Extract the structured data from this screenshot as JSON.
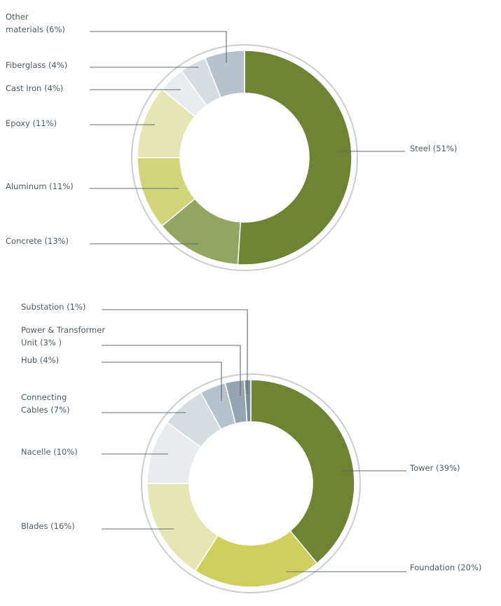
{
  "chart_data": [
    {
      "type": "pie",
      "donut": true,
      "categories": [
        "Steel",
        "Concrete",
        "Aluminum",
        "Epoxy",
        "Cast Iron",
        "Fiberglass",
        "Other materials"
      ],
      "values": [
        51,
        13,
        11,
        11,
        4,
        4,
        6
      ],
      "labels": [
        "Steel (51%)",
        "Concrete (13%)",
        "Aluminum (11%)",
        "Epoxy (11%)",
        "Cast Iron (4%)",
        "Fiberglass (4%)",
        "Other\nmaterials (6%)"
      ],
      "colors": [
        "#6f8335",
        "#93a463",
        "#d2d47a",
        "#e6e6b4",
        "#e8ecef",
        "#d6dde2",
        "#b7c3cc"
      ],
      "title": "",
      "xlabel": "",
      "ylabel": ""
    },
    {
      "type": "pie",
      "donut": true,
      "categories": [
        "Tower",
        "Foundation",
        "Blades",
        "Nacelle",
        "Connecting Cables",
        "Hub",
        "Power & Transformer Unit",
        "Substation"
      ],
      "values": [
        39,
        20,
        16,
        10,
        7,
        4,
        3,
        1
      ],
      "labels": [
        "Tower (39%)",
        "Foundation (20%)",
        "Blades (16%)",
        "Nacelle (10%)",
        "Connecting\nCables (7%)",
        "Hub (4%)",
        "Power & Transformer\nUnit (3% )",
        "Substation (1%)"
      ],
      "colors": [
        "#6f8335",
        "#cfcf5f",
        "#e6e6b4",
        "#e8ecef",
        "#d6dde2",
        "#b7c3cc",
        "#96a5b1",
        "#7d8e9b"
      ],
      "title": "",
      "xlabel": "",
      "ylabel": ""
    }
  ]
}
